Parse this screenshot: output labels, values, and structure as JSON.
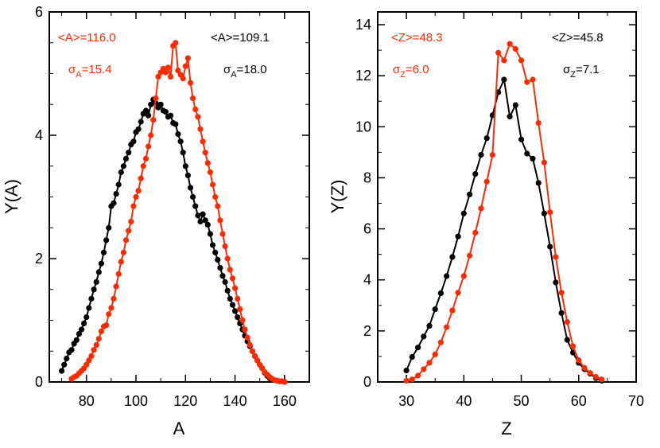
{
  "colors": {
    "red": "#ff2a00",
    "black": "#000000"
  },
  "chart_data": [
    {
      "type": "line",
      "id": "A",
      "xlabel": "A",
      "ylabel": "Y(A)",
      "xlim": [
        65,
        170
      ],
      "ylim": [
        0,
        6
      ],
      "xticks": [
        80,
        100,
        120,
        140,
        160
      ],
      "yticks": [
        0,
        2,
        4,
        6
      ],
      "annotations": {
        "red_mean": "<A>=116.0",
        "red_sigma_prefix": "σ",
        "red_sigma_sub": "A",
        "red_sigma_value": "=15.4",
        "black_mean": "<A>=109.1",
        "black_sigma_prefix": "σ",
        "black_sigma_sub": "A",
        "black_sigma_value": "=18.0"
      },
      "series": [
        {
          "name": "black",
          "color": "#000000",
          "x": [
            70,
            71,
            72,
            73,
            74,
            75,
            76,
            77,
            78,
            79,
            80,
            81,
            82,
            83,
            84,
            85,
            86,
            87,
            88,
            89,
            90,
            91,
            92,
            93,
            94,
            95,
            96,
            97,
            98,
            99,
            100,
            101,
            102,
            103,
            104,
            105,
            106,
            107,
            108,
            109,
            110,
            111,
            112,
            113,
            114,
            115,
            116,
            117,
            118,
            119,
            120,
            121,
            122,
            123,
            124,
            125,
            126,
            127,
            128,
            129,
            130,
            131,
            132,
            133,
            134,
            135,
            136,
            137,
            138,
            139,
            140,
            141,
            142,
            143,
            144,
            145,
            146,
            147,
            148,
            149,
            150,
            151,
            152,
            153,
            154,
            155,
            156,
            157,
            158,
            159,
            160
          ],
          "values": [
            0.18,
            0.28,
            0.38,
            0.48,
            0.52,
            0.62,
            0.68,
            0.78,
            0.85,
            0.95,
            1.05,
            1.2,
            1.35,
            1.5,
            1.62,
            1.78,
            1.92,
            2.1,
            2.3,
            2.5,
            2.85,
            2.9,
            3.05,
            3.2,
            3.4,
            3.5,
            3.62,
            3.72,
            3.85,
            3.9,
            4.05,
            4.1,
            4.22,
            4.35,
            4.4,
            4.32,
            4.5,
            4.58,
            4.52,
            4.45,
            4.5,
            4.4,
            4.38,
            4.3,
            4.32,
            4.2,
            4.18,
            4.02,
            3.9,
            3.72,
            3.5,
            3.35,
            3.15,
            3.0,
            2.85,
            2.7,
            2.6,
            2.72,
            2.62,
            2.55,
            2.4,
            2.22,
            2.1,
            1.98,
            1.85,
            1.72,
            1.62,
            1.48,
            1.35,
            1.25,
            1.15,
            1.05,
            0.95,
            0.85,
            0.75,
            0.66,
            0.58,
            0.5,
            0.42,
            0.35,
            0.28,
            0.22,
            0.15,
            0.1,
            0.06,
            0.04,
            0.03,
            0.02,
            0.01,
            0.01,
            0.0
          ]
        },
        {
          "name": "red",
          "color": "#ff2a00",
          "x": [
            74,
            75,
            76,
            77,
            78,
            79,
            80,
            81,
            82,
            83,
            84,
            85,
            86,
            87,
            88,
            89,
            90,
            91,
            92,
            93,
            94,
            95,
            96,
            97,
            98,
            99,
            100,
            101,
            102,
            103,
            104,
            105,
            106,
            107,
            108,
            109,
            110,
            111,
            112,
            113,
            114,
            115,
            116,
            117,
            118,
            119,
            120,
            121,
            122,
            123,
            124,
            125,
            126,
            127,
            128,
            129,
            130,
            131,
            132,
            133,
            134,
            135,
            136,
            137,
            138,
            139,
            140,
            141,
            142,
            143,
            144,
            145,
            146,
            147,
            148,
            149,
            150,
            151,
            152,
            153,
            154,
            155,
            156,
            157,
            158,
            159,
            160
          ],
          "values": [
            0.05,
            0.08,
            0.1,
            0.14,
            0.18,
            0.22,
            0.28,
            0.35,
            0.42,
            0.52,
            0.6,
            0.7,
            0.82,
            0.9,
            0.92,
            1.1,
            1.2,
            1.35,
            1.55,
            1.75,
            1.95,
            2.1,
            2.3,
            2.45,
            2.6,
            2.85,
            3.0,
            3.1,
            3.3,
            3.5,
            3.62,
            3.82,
            4.0,
            4.25,
            4.6,
            4.95,
            5.02,
            5.08,
            5.02,
            5.1,
            4.95,
            5.45,
            5.5,
            5.05,
            4.98,
            4.92,
            5.12,
            5.25,
            4.85,
            4.6,
            4.42,
            4.3,
            4.1,
            3.9,
            3.72,
            3.55,
            3.4,
            3.2,
            3.0,
            2.85,
            2.62,
            2.4,
            2.2,
            2.0,
            1.82,
            1.68,
            1.52,
            1.35,
            1.18,
            1.0,
            0.85,
            0.72,
            0.6,
            0.5,
            0.42,
            0.35,
            0.28,
            0.22,
            0.16,
            0.12,
            0.08,
            0.05,
            0.03,
            0.02,
            0.01,
            0.01,
            0.0
          ]
        }
      ]
    },
    {
      "type": "line",
      "id": "Z",
      "xlabel": "Z",
      "ylabel": "Y(Z)",
      "xlim": [
        25,
        70
      ],
      "ylim": [
        0,
        14.5
      ],
      "xticks": [
        30,
        40,
        50,
        60,
        70
      ],
      "yticks": [
        0,
        2,
        4,
        6,
        8,
        10,
        12,
        14
      ],
      "annotations": {
        "red_mean": "<Z>=48.3",
        "red_sigma_prefix": "σ",
        "red_sigma_sub": "Z",
        "red_sigma_value": "=6.0",
        "black_mean": "<Z>=45.8",
        "black_sigma_prefix": "σ",
        "black_sigma_sub": "Z",
        "black_sigma_value": "=7.1"
      },
      "series": [
        {
          "name": "black",
          "color": "#000000",
          "x": [
            30,
            31,
            32,
            33,
            34,
            35,
            36,
            37,
            38,
            39,
            40,
            41,
            42,
            43,
            44,
            45,
            46,
            47,
            48,
            49,
            50,
            51,
            52,
            53,
            54,
            55,
            56,
            57,
            58,
            59,
            60,
            61,
            62,
            63,
            64
          ],
          "values": [
            0.45,
            0.98,
            1.35,
            1.78,
            2.2,
            2.85,
            3.48,
            4.15,
            4.9,
            5.7,
            6.6,
            7.35,
            8.15,
            8.9,
            9.55,
            10.45,
            11.35,
            11.85,
            10.4,
            10.85,
            9.5,
            8.95,
            8.75,
            7.8,
            6.6,
            5.3,
            3.9,
            2.7,
            1.65,
            1.15,
            0.75,
            0.5,
            0.32,
            0.15,
            0.05
          ]
        },
        {
          "name": "red",
          "color": "#ff2a00",
          "x": [
            30,
            31,
            32,
            33,
            34,
            35,
            36,
            37,
            38,
            39,
            40,
            41,
            42,
            43,
            44,
            45,
            46,
            47,
            48,
            49,
            50,
            51,
            52,
            53,
            54,
            55,
            56,
            57,
            58,
            59,
            60,
            61,
            62,
            63,
            64
          ],
          "values": [
            0.05,
            0.1,
            0.25,
            0.5,
            0.75,
            1.08,
            1.55,
            2.15,
            2.8,
            3.5,
            4.15,
            4.95,
            5.85,
            6.8,
            7.85,
            8.9,
            12.9,
            12.6,
            13.25,
            13.05,
            12.6,
            11.75,
            11.85,
            10.15,
            8.6,
            6.65,
            4.9,
            3.5,
            2.35,
            1.4,
            0.85,
            0.55,
            0.35,
            0.2,
            0.1
          ]
        }
      ]
    }
  ]
}
